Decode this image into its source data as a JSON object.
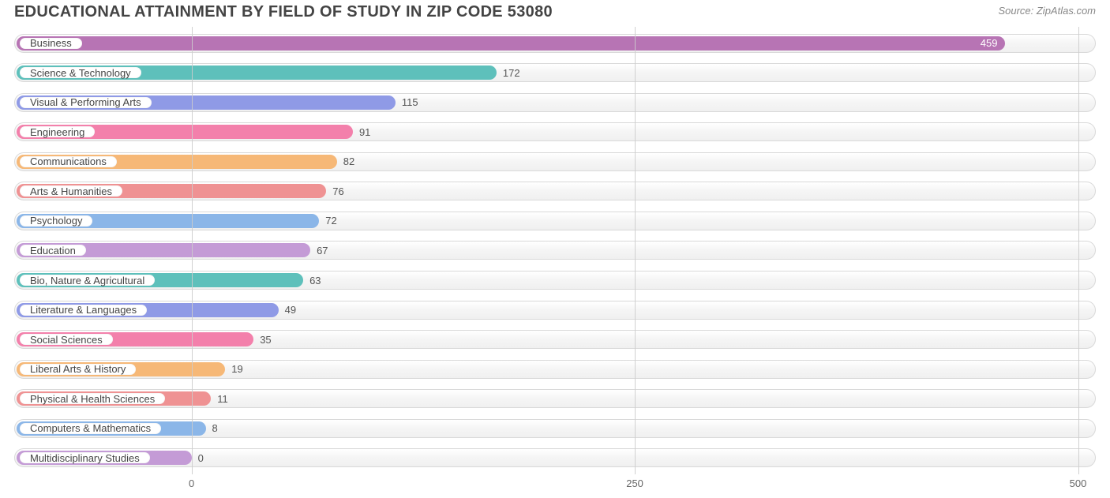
{
  "title": "EDUCATIONAL ATTAINMENT BY FIELD OF STUDY IN ZIP CODE 53080",
  "source": "Source: ZipAtlas.com",
  "chart": {
    "type": "bar-horizontal",
    "xmin": -100,
    "xmax": 510,
    "track_bg_top": "#ffffff",
    "track_bg_bottom": "#f0f0f0",
    "track_border": "#d9d9d9",
    "grid_color": "#cccccc",
    "text_color": "#444444",
    "value_text_color_outside": "#555555",
    "value_text_color_inside": "#ffffff",
    "label_fontsize": 13,
    "title_fontsize": 20,
    "ticks": [
      {
        "value": 0,
        "label": "0"
      },
      {
        "value": 250,
        "label": "250"
      },
      {
        "value": 500,
        "label": "500"
      }
    ],
    "rows": [
      {
        "label": "Business",
        "value": 459,
        "color": "#b774b4",
        "value_inside": true
      },
      {
        "label": "Science & Technology",
        "value": 172,
        "color": "#5ec0bb",
        "value_inside": false
      },
      {
        "label": "Visual & Performing Arts",
        "value": 115,
        "color": "#8f9ae6",
        "value_inside": false
      },
      {
        "label": "Engineering",
        "value": 91,
        "color": "#f380ab",
        "value_inside": false
      },
      {
        "label": "Communications",
        "value": 82,
        "color": "#f6b877",
        "value_inside": false
      },
      {
        "label": "Arts & Humanities",
        "value": 76,
        "color": "#ef9293",
        "value_inside": false
      },
      {
        "label": "Psychology",
        "value": 72,
        "color": "#8bb6e8",
        "value_inside": false
      },
      {
        "label": "Education",
        "value": 67,
        "color": "#c49bd6",
        "value_inside": false
      },
      {
        "label": "Bio, Nature & Agricultural",
        "value": 63,
        "color": "#5ec0bb",
        "value_inside": false
      },
      {
        "label": "Literature & Languages",
        "value": 49,
        "color": "#8f9ae6",
        "value_inside": false
      },
      {
        "label": "Social Sciences",
        "value": 35,
        "color": "#f380ab",
        "value_inside": false
      },
      {
        "label": "Liberal Arts & History",
        "value": 19,
        "color": "#f6b877",
        "value_inside": false
      },
      {
        "label": "Physical & Health Sciences",
        "value": 11,
        "color": "#ef9293",
        "value_inside": false
      },
      {
        "label": "Computers & Mathematics",
        "value": 8,
        "color": "#8bb6e8",
        "value_inside": false
      },
      {
        "label": "Multidisciplinary Studies",
        "value": 0,
        "color": "#c49bd6",
        "value_inside": false
      }
    ]
  }
}
